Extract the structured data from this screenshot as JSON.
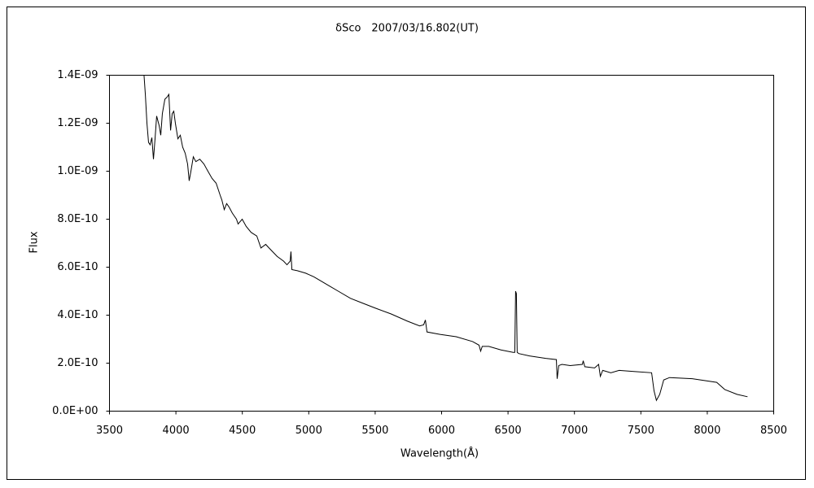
{
  "chart_data": {
    "type": "line",
    "title": "δSco　2007/03/16.802(UT)",
    "x_label": "Wavelength(Å)",
    "y_label": "Flux",
    "xlim": [
      3500,
      8500
    ],
    "xticks": [
      3500,
      4000,
      4500,
      5000,
      5500,
      6000,
      6500,
      7000,
      7500,
      8000,
      8500
    ],
    "ylim": [
      0,
      1.4e-09
    ],
    "yticks": [
      {
        "value": 0,
        "label": "0.0E+00"
      },
      {
        "value": 2e-10,
        "label": "2.0E-10"
      },
      {
        "value": 4e-10,
        "label": "4.0E-10"
      },
      {
        "value": 6e-10,
        "label": "6.0E-10"
      },
      {
        "value": 8e-10,
        "label": "8.0E-10"
      },
      {
        "value": 1e-09,
        "label": "1.0E-09"
      },
      {
        "value": 1.2e-09,
        "label": "1.2E-09"
      },
      {
        "value": 1.4e-09,
        "label": "1.4E-09"
      }
    ],
    "grid": false,
    "series": [
      {
        "color": "#000000",
        "x": [
          3760,
          3770,
          3782,
          3794,
          3806,
          3819,
          3831,
          3843,
          3855,
          3874,
          3886,
          3898,
          3917,
          3935,
          3947,
          3960,
          3972,
          3984,
          3996,
          4015,
          4033,
          4051,
          4070,
          4088,
          4100,
          4113,
          4131,
          4150,
          4180,
          4211,
          4241,
          4272,
          4303,
          4333,
          4346,
          4364,
          4382,
          4401,
          4425,
          4456,
          4468,
          4499,
          4529,
          4566,
          4609,
          4640,
          4676,
          4701,
          4762,
          4811,
          4836,
          4860,
          4866,
          4873,
          4915,
          4977,
          5038,
          5099,
          5160,
          5222,
          5314,
          5406,
          5498,
          5620,
          5743,
          5835,
          5865,
          5878,
          5890,
          5988,
          6110,
          6233,
          6282,
          6294,
          6306,
          6355,
          6447,
          6539,
          6551,
          6557,
          6563,
          6569,
          6581,
          6662,
          6784,
          6864,
          6870,
          6882,
          6906,
          6968,
          7060,
          7066,
          7078,
          7152,
          7182,
          7195,
          7213,
          7274,
          7336,
          7458,
          7581,
          7599,
          7617,
          7642,
          7672,
          7716,
          7887,
          8071,
          8132,
          8224,
          8303
        ],
        "values": [
          1.4e-09,
          1.32e-09,
          1.2e-09,
          1.12e-09,
          1.11e-09,
          1.14e-09,
          1.05e-09,
          1.135e-09,
          1.23e-09,
          1.19e-09,
          1.15e-09,
          1.24e-09,
          1.3e-09,
          1.31e-09,
          1.32e-09,
          1.17e-09,
          1.24e-09,
          1.25e-09,
          1.2e-09,
          1.135e-09,
          1.15e-09,
          1.1e-09,
          1.075e-09,
          1.03e-09,
          9.6e-10,
          1e-09,
          1.06e-09,
          1.04e-09,
          1.05e-09,
          1.03e-09,
          1e-09,
          9.7e-10,
          9.5e-10,
          9e-10,
          8.8e-10,
          8.4e-10,
          8.65e-10,
          8.5e-10,
          8.25e-10,
          8e-10,
          7.8e-10,
          8e-10,
          7.7e-10,
          7.45e-10,
          7.3e-10,
          6.8e-10,
          6.95e-10,
          6.8e-10,
          6.45e-10,
          6.25e-10,
          6.1e-10,
          6.25e-10,
          6.65e-10,
          5.9e-10,
          5.85e-10,
          5.75e-10,
          5.6e-10,
          5.4e-10,
          5.2e-10,
          5e-10,
          4.7e-10,
          4.5e-10,
          4.3e-10,
          4.05e-10,
          3.75e-10,
          3.55e-10,
          3.6e-10,
          3.8e-10,
          3.3e-10,
          3.2e-10,
          3.1e-10,
          2.9e-10,
          2.75e-10,
          2.5e-10,
          2.7e-10,
          2.7e-10,
          2.55e-10,
          2.45e-10,
          2.45e-10,
          5e-10,
          4.9e-10,
          2.45e-10,
          2.4e-10,
          2.3e-10,
          2.2e-10,
          2.15e-10,
          1.35e-10,
          1.9e-10,
          1.95e-10,
          1.9e-10,
          1.95e-10,
          2.1e-10,
          1.85e-10,
          1.8e-10,
          1.95e-10,
          1.45e-10,
          1.7e-10,
          1.6e-10,
          1.7e-10,
          1.65e-10,
          1.6e-10,
          8.5e-11,
          4.5e-11,
          7e-11,
          1.3e-10,
          1.4e-10,
          1.35e-10,
          1.2e-10,
          9e-11,
          7e-11,
          6e-11
        ]
      }
    ]
  }
}
